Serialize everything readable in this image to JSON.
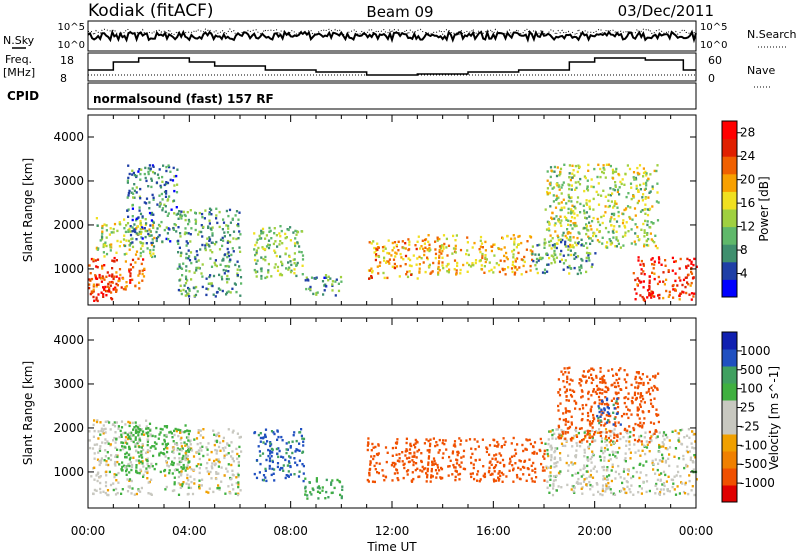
{
  "header": {
    "station": "Kodiak  (fitACF)",
    "beam": "Beam 09",
    "date": "03/Dec/2011"
  },
  "params": {
    "nsky_label": "N.Sky",
    "nsearch_label": "N.Search",
    "freq_label_1": "Freq.",
    "freq_label_2": "[MHz]",
    "nave_label": "Nave",
    "cpid_label": "CPID",
    "cpid_value": "normalsound (fast) 157 RF",
    "noise_ticks": [
      "10^5",
      "10^0"
    ],
    "freq_ticks": [
      "18",
      "8"
    ],
    "nave_ticks": [
      "60",
      "0"
    ]
  },
  "colors": {
    "power_scale": [
      "#0000ff",
      "#1f3fa6",
      "#3f8f6e",
      "#5fb86a",
      "#9fd040",
      "#f0e020",
      "#f8a000",
      "#f06000",
      "#e02000",
      "#ff0000"
    ],
    "velocity_scale": [
      "#e00000",
      "#f05000",
      "#f08000",
      "#f0a000",
      "#c8c8c0",
      "#c8c8c0",
      "#40b040",
      "#40a060",
      "#2050c0",
      "#1020b0"
    ]
  },
  "chart_data": [
    {
      "type": "heatmap",
      "title": "Power",
      "xlabel": "",
      "ylabel": "Slant Range [km]",
      "xlim": [
        "00:00",
        "24:00"
      ],
      "ylim": [
        180,
        4500
      ],
      "x_ticks": [
        "00:00",
        "04:00",
        "08:00",
        "12:00",
        "16:00",
        "20:00",
        "00:00"
      ],
      "y_ticks": [
        "1000",
        "2000",
        "3000",
        "4000"
      ],
      "y_tick_values": [
        1000,
        2000,
        3000,
        4000
      ],
      "colorbar": {
        "label": "Power [dB]",
        "ticks": [
          "4",
          "8",
          "12",
          "16",
          "20",
          "24",
          "28"
        ],
        "range": [
          0,
          30
        ]
      },
      "regions": [
        {
          "t": [
            0,
            2.2
          ],
          "r": [
            500,
            1300
          ],
          "value": 24
        },
        {
          "t": [
            0,
            1.2
          ],
          "r": [
            300,
            900
          ],
          "value": 27
        },
        {
          "t": [
            0.3,
            2.6
          ],
          "r": [
            1300,
            2200
          ],
          "value": 14
        },
        {
          "t": [
            1.5,
            3.5
          ],
          "r": [
            1600,
            3400
          ],
          "value": 8
        },
        {
          "t": [
            3.5,
            6.0
          ],
          "r": [
            400,
            2400
          ],
          "value": 9
        },
        {
          "t": [
            6.5,
            8.5
          ],
          "r": [
            800,
            2000
          ],
          "value": 12
        },
        {
          "t": [
            8.5,
            10.0
          ],
          "r": [
            400,
            900
          ],
          "value": 8
        },
        {
          "t": [
            11.0,
            13.0
          ],
          "r": [
            800,
            1700
          ],
          "value": 20
        },
        {
          "t": [
            13.0,
            17.5
          ],
          "r": [
            900,
            1800
          ],
          "value": 18
        },
        {
          "t": [
            17.5,
            20.0
          ],
          "r": [
            900,
            1700
          ],
          "value": 10
        },
        {
          "t": [
            18.0,
            22.5
          ],
          "r": [
            1500,
            3400
          ],
          "value": 14
        },
        {
          "t": [
            21.5,
            24.0
          ],
          "r": [
            300,
            1300
          ],
          "value": 26
        }
      ]
    },
    {
      "type": "heatmap",
      "title": "Velocity",
      "xlabel": "Time UT",
      "ylabel": "Slant Range [km]",
      "xlim": [
        "00:00",
        "24:00"
      ],
      "ylim": [
        180,
        4500
      ],
      "x_ticks": [
        "00:00",
        "04:00",
        "08:00",
        "12:00",
        "16:00",
        "20:00",
        "00:00"
      ],
      "y_ticks": [
        "1000",
        "2000",
        "3000",
        "4000"
      ],
      "y_tick_values": [
        1000,
        2000,
        3000,
        4000
      ],
      "colorbar": {
        "label": "Velocity [m s^-1]",
        "ticks": [
          "1000",
          "500",
          "100",
          "25",
          "-25",
          "-100",
          "-500",
          "-1000"
        ]
      },
      "regions": [
        {
          "t": [
            0,
            2.5
          ],
          "r": [
            500,
            2200
          ],
          "value": 0
        },
        {
          "t": [
            1.0,
            4.0
          ],
          "r": [
            1000,
            2100
          ],
          "value": 60
        },
        {
          "t": [
            3.0,
            6.0
          ],
          "r": [
            500,
            2000
          ],
          "value": 0
        },
        {
          "t": [
            6.5,
            8.5
          ],
          "r": [
            800,
            2000
          ],
          "value": 300
        },
        {
          "t": [
            8.5,
            10.0
          ],
          "r": [
            400,
            900
          ],
          "value": 100
        },
        {
          "t": [
            11.0,
            18.0
          ],
          "r": [
            800,
            1800
          ],
          "value": -300
        },
        {
          "t": [
            18.0,
            24.0
          ],
          "r": [
            500,
            2000
          ],
          "value": 0
        },
        {
          "t": [
            18.5,
            22.5
          ],
          "r": [
            1700,
            3400
          ],
          "value": -300
        },
        {
          "t": [
            20.0,
            21.0
          ],
          "r": [
            2100,
            2700
          ],
          "value": 300
        }
      ]
    }
  ]
}
